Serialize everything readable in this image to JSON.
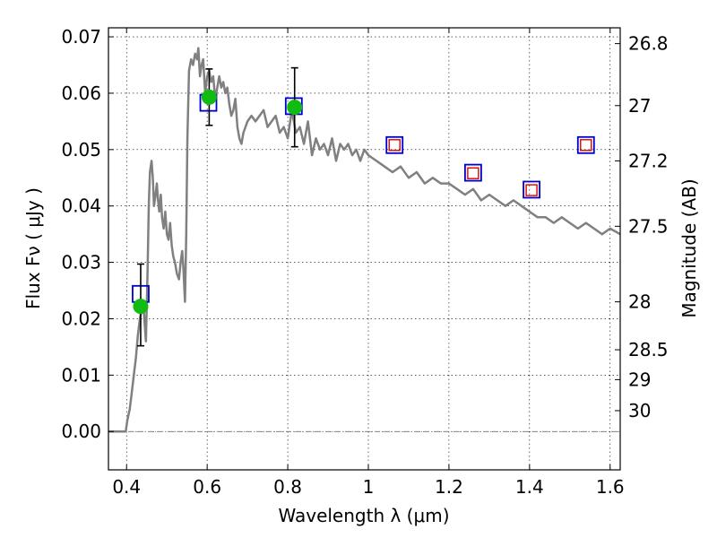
{
  "chart_data": {
    "type": "scatter",
    "xlabel": "Wavelength  λ (μm)",
    "ylabel": "Flux  Fν  ( μJy )",
    "y2label": "Magnitude (AB)",
    "xlim": [
      0.355,
      1.625
    ],
    "ylim": [
      -0.0068,
      0.0716
    ],
    "x_ticks": [
      0.4,
      0.6,
      0.8,
      1.0,
      1.2,
      1.4,
      1.6
    ],
    "x_tick_labels": [
      "0.4",
      "0.6",
      "0.8",
      "1",
      "1.2",
      "1.4",
      "1.6"
    ],
    "y_ticks": [
      0.0,
      0.01,
      0.02,
      0.03,
      0.04,
      0.05,
      0.06,
      0.07
    ],
    "y_tick_labels": [
      "0.00",
      "0.01",
      "0.02",
      "0.03",
      "0.04",
      "0.05",
      "0.06",
      "0.07"
    ],
    "y2_ticks": [
      {
        "flux": 0.0688,
        "label": "26.8"
      },
      {
        "flux": 0.0578,
        "label": "27"
      },
      {
        "flux": 0.048,
        "label": "27.2"
      },
      {
        "flux": 0.0364,
        "label": "27.5"
      },
      {
        "flux": 0.023,
        "label": "28"
      },
      {
        "flux": 0.0145,
        "label": "28.5"
      },
      {
        "flux": 0.0092,
        "label": "29"
      },
      {
        "flux": 0.0037,
        "label": "30"
      }
    ],
    "grid": true,
    "colors": {
      "model": "#808080",
      "detection": "#11bb11",
      "model_photometry": "#0000cc",
      "upper_limit": "#dd0000",
      "error_bar": "#000000",
      "zero_line": "#555555"
    },
    "series": [
      {
        "kind": "line",
        "x": [
          0.355,
          0.398,
          0.402,
          0.408,
          0.413,
          0.418,
          0.423,
          0.428,
          0.433,
          0.438,
          0.443,
          0.448,
          0.452,
          0.455,
          0.458,
          0.462,
          0.465,
          0.468,
          0.472,
          0.475,
          0.478,
          0.481,
          0.485,
          0.488,
          0.492,
          0.496,
          0.5,
          0.504,
          0.508,
          0.512,
          0.516,
          0.52,
          0.525,
          0.53,
          0.534,
          0.538,
          0.541,
          0.545,
          0.548,
          0.551,
          0.555,
          0.56,
          0.565,
          0.57,
          0.575,
          0.578,
          0.582,
          0.586,
          0.59,
          0.595,
          0.6,
          0.605,
          0.61,
          0.615,
          0.62,
          0.625,
          0.63,
          0.635,
          0.64,
          0.645,
          0.65,
          0.655,
          0.66,
          0.665,
          0.67,
          0.675,
          0.68,
          0.685,
          0.69,
          0.7,
          0.71,
          0.72,
          0.73,
          0.74,
          0.75,
          0.76,
          0.77,
          0.78,
          0.79,
          0.8,
          0.81,
          0.82,
          0.83,
          0.84,
          0.85,
          0.86,
          0.87,
          0.88,
          0.89,
          0.9,
          0.91,
          0.92,
          0.93,
          0.94,
          0.95,
          0.96,
          0.97,
          0.98,
          0.99,
          1.0,
          1.02,
          1.04,
          1.06,
          1.08,
          1.1,
          1.12,
          1.14,
          1.16,
          1.18,
          1.2,
          1.22,
          1.24,
          1.26,
          1.28,
          1.3,
          1.32,
          1.34,
          1.36,
          1.38,
          1.4,
          1.42,
          1.44,
          1.46,
          1.48,
          1.5,
          1.52,
          1.54,
          1.56,
          1.58,
          1.6,
          1.625
        ],
        "y": [
          0.0,
          0.0,
          0.002,
          0.004,
          0.007,
          0.01,
          0.013,
          0.017,
          0.02,
          0.022,
          0.021,
          0.016,
          0.028,
          0.04,
          0.046,
          0.048,
          0.045,
          0.04,
          0.042,
          0.044,
          0.041,
          0.039,
          0.042,
          0.038,
          0.036,
          0.039,
          0.035,
          0.034,
          0.037,
          0.033,
          0.031,
          0.03,
          0.028,
          0.027,
          0.03,
          0.032,
          0.029,
          0.023,
          0.035,
          0.052,
          0.064,
          0.066,
          0.065,
          0.067,
          0.066,
          0.068,
          0.063,
          0.065,
          0.066,
          0.06,
          0.063,
          0.064,
          0.062,
          0.063,
          0.059,
          0.061,
          0.063,
          0.061,
          0.062,
          0.06,
          0.061,
          0.058,
          0.056,
          0.057,
          0.059,
          0.054,
          0.052,
          0.051,
          0.053,
          0.055,
          0.056,
          0.055,
          0.056,
          0.057,
          0.054,
          0.055,
          0.056,
          0.053,
          0.054,
          0.052,
          0.057,
          0.053,
          0.054,
          0.051,
          0.055,
          0.049,
          0.052,
          0.05,
          0.051,
          0.049,
          0.052,
          0.048,
          0.051,
          0.05,
          0.051,
          0.049,
          0.05,
          0.048,
          0.05,
          0.049,
          0.048,
          0.047,
          0.046,
          0.047,
          0.045,
          0.046,
          0.044,
          0.045,
          0.044,
          0.044,
          0.043,
          0.042,
          0.043,
          0.041,
          0.042,
          0.041,
          0.04,
          0.041,
          0.04,
          0.039,
          0.038,
          0.038,
          0.037,
          0.038,
          0.037,
          0.036,
          0.037,
          0.036,
          0.035,
          0.036,
          0.035
        ]
      },
      {
        "kind": "model-photometry",
        "marker": "open-square",
        "x": [
          0.435,
          0.603,
          0.815,
          1.065,
          1.26,
          1.405,
          1.54
        ],
        "y": [
          0.0244,
          0.0583,
          0.0577,
          0.0508,
          0.0459,
          0.0429,
          0.0508
        ]
      },
      {
        "kind": "upper-limit",
        "marker": "small-open-square",
        "x": [
          1.065,
          1.26,
          1.405,
          1.54
        ],
        "y": [
          0.0508,
          0.0458,
          0.0428,
          0.0508
        ]
      },
      {
        "kind": "detection",
        "marker": "filled-circle",
        "x": [
          0.435,
          0.605,
          0.817
        ],
        "y": [
          0.0222,
          0.0593,
          0.0575
        ],
        "err_low": [
          0.007,
          0.005,
          0.007
        ],
        "err_high": [
          0.0075,
          0.005,
          0.007
        ]
      }
    ]
  }
}
